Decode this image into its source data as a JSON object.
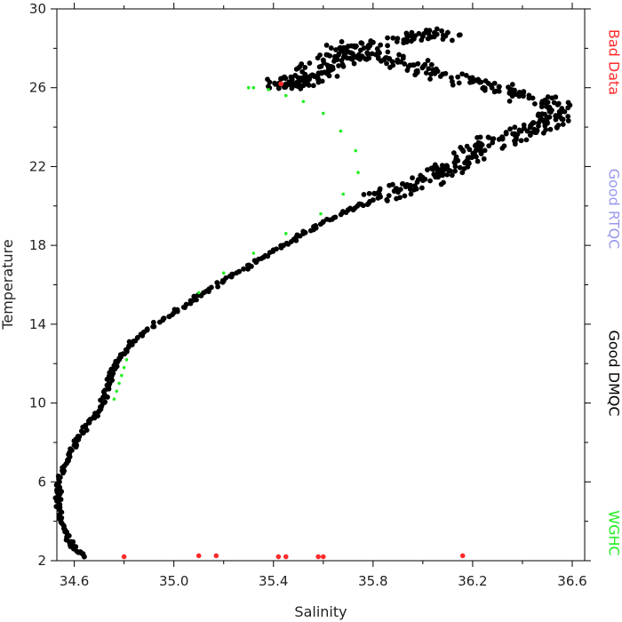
{
  "chart_data": {
    "type": "scatter",
    "xlabel": "Salinity",
    "ylabel": "Temperature",
    "xlim": [
      34.53,
      36.65
    ],
    "ylim": [
      2,
      30
    ],
    "xticks": [
      "34.6",
      "35.0",
      "35.4",
      "35.8",
      "36.2",
      "36.6"
    ],
    "yticks": [
      "2",
      "6",
      "10",
      "14",
      "18",
      "22",
      "26",
      "30"
    ],
    "grid": false,
    "legend": {
      "placement": "right-side-vertical",
      "entries": [
        {
          "label": "Bad Data",
          "color": "#ff2a2a"
        },
        {
          "label": "Good RTQC",
          "color": "#9999ee"
        },
        {
          "label": "Good DMQC",
          "color": "#000000"
        },
        {
          "label": "WGHC",
          "color": "#22ee22"
        }
      ]
    },
    "series": [
      {
        "name": "Good DMQC",
        "color": "#000000",
        "kind": "dense-profile",
        "points": [
          [
            34.64,
            2.2
          ],
          [
            34.6,
            2.6
          ],
          [
            34.57,
            3.2
          ],
          [
            34.55,
            3.9
          ],
          [
            34.54,
            4.6
          ],
          [
            34.535,
            5.3
          ],
          [
            34.54,
            6.0
          ],
          [
            34.56,
            6.8
          ],
          [
            34.59,
            7.6
          ],
          [
            34.62,
            8.3
          ],
          [
            34.66,
            9.0
          ],
          [
            34.7,
            9.6
          ],
          [
            34.72,
            10.3
          ],
          [
            34.74,
            11.0
          ],
          [
            34.75,
            11.6
          ],
          [
            34.78,
            12.2
          ],
          [
            34.82,
            12.9
          ],
          [
            34.88,
            13.6
          ],
          [
            34.96,
            14.3
          ],
          [
            35.05,
            15.0
          ],
          [
            35.12,
            15.6
          ],
          [
            35.2,
            16.2
          ],
          [
            35.28,
            16.8
          ],
          [
            35.36,
            17.4
          ],
          [
            35.44,
            18.0
          ],
          [
            35.52,
            18.6
          ],
          [
            35.6,
            19.2
          ],
          [
            35.7,
            19.8
          ],
          [
            35.8,
            20.3
          ],
          [
            35.9,
            20.8
          ],
          [
            36.0,
            21.3
          ],
          [
            36.08,
            21.8
          ],
          [
            36.14,
            22.3
          ],
          [
            36.22,
            22.9
          ],
          [
            36.32,
            23.4
          ],
          [
            36.42,
            23.8
          ],
          [
            36.5,
            24.2
          ],
          [
            36.55,
            24.7
          ],
          [
            36.48,
            25.3
          ],
          [
            36.35,
            25.8
          ],
          [
            36.2,
            26.3
          ],
          [
            36.05,
            26.8
          ],
          [
            35.9,
            27.3
          ],
          [
            35.78,
            27.7
          ],
          [
            35.7,
            28.1
          ],
          [
            35.6,
            27.4
          ],
          [
            35.55,
            26.6
          ],
          [
            35.48,
            26.2
          ],
          [
            35.42,
            26.2
          ],
          [
            35.62,
            26.8
          ],
          [
            35.8,
            28.3
          ],
          [
            36.0,
            28.6
          ],
          [
            36.1,
            28.8
          ]
        ]
      },
      {
        "name": "WGHC",
        "color": "#22ee22",
        "points": [
          [
            34.76,
            10.2
          ],
          [
            34.77,
            10.6
          ],
          [
            34.78,
            11.0
          ],
          [
            34.79,
            11.4
          ],
          [
            34.8,
            11.8
          ],
          [
            34.81,
            12.2
          ],
          [
            35.1,
            15.6
          ],
          [
            35.2,
            16.6
          ],
          [
            35.32,
            17.6
          ],
          [
            35.45,
            18.6
          ],
          [
            35.59,
            19.6
          ],
          [
            35.68,
            20.6
          ],
          [
            35.74,
            21.7
          ],
          [
            35.73,
            22.8
          ],
          [
            35.67,
            23.8
          ],
          [
            35.6,
            24.7
          ],
          [
            35.52,
            25.3
          ],
          [
            35.45,
            25.6
          ],
          [
            35.38,
            25.9
          ],
          [
            35.32,
            26.0
          ],
          [
            35.3,
            26.0
          ]
        ]
      },
      {
        "name": "Bad Data",
        "color": "#ff2a2a",
        "points": [
          [
            34.8,
            2.2
          ],
          [
            35.1,
            2.25
          ],
          [
            35.17,
            2.25
          ],
          [
            35.42,
            2.2
          ],
          [
            35.45,
            2.2
          ],
          [
            35.58,
            2.2
          ],
          [
            35.6,
            2.2
          ],
          [
            36.16,
            2.25
          ],
          [
            35.43,
            26.2
          ]
        ]
      }
    ]
  }
}
